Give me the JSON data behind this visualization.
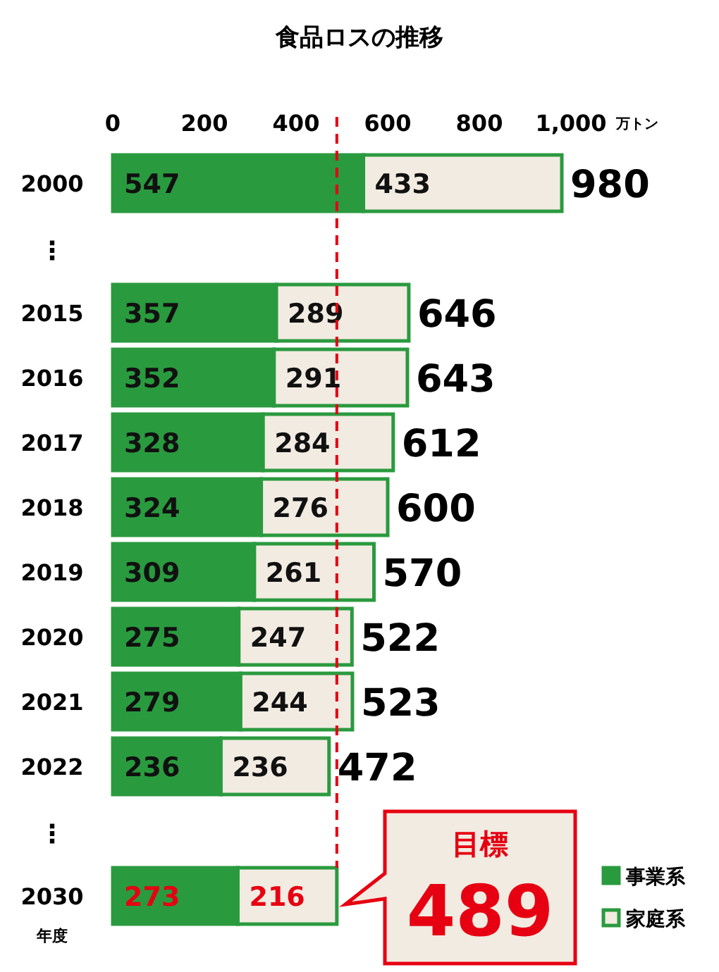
{
  "chart_data": {
    "type": "bar",
    "orientation": "horizontal",
    "stacked": true,
    "title": "食品ロスの推移",
    "xlabel": "万トン",
    "ylabel": "年度",
    "categories": [
      "2000",
      "⋮",
      "2015",
      "2016",
      "2017",
      "2018",
      "2019",
      "2020",
      "2021",
      "2022",
      "⋮",
      "2030"
    ],
    "series": [
      {
        "name": "事業系",
        "color": "#2a9a3f",
        "values": [
          547,
          null,
          357,
          352,
          328,
          324,
          309,
          275,
          279,
          236,
          null,
          273
        ]
      },
      {
        "name": "家庭系",
        "color": "#f2ebe1",
        "values": [
          433,
          null,
          289,
          291,
          284,
          276,
          261,
          247,
          244,
          236,
          null,
          216
        ]
      }
    ],
    "xlim": [
      0,
      1000
    ],
    "xticks": [
      0,
      200,
      400,
      600,
      800,
      {
        "value": 1000,
        "label": "1,000"
      }
    ],
    "data_labels": true,
    "totals": [
      "980",
      null,
      "646",
      "643",
      "612",
      "600",
      "570",
      "522",
      "523",
      "472",
      null,
      null
    ],
    "ref_lines": [
      {
        "axis": "x",
        "value": 489,
        "color": "#e60012",
        "line_style": "dashed"
      }
    ],
    "annotations": [
      {
        "text": "目標\n489",
        "x": 489,
        "y": "2030"
      }
    ],
    "legend": "bottom right",
    "grid": false
  }
}
